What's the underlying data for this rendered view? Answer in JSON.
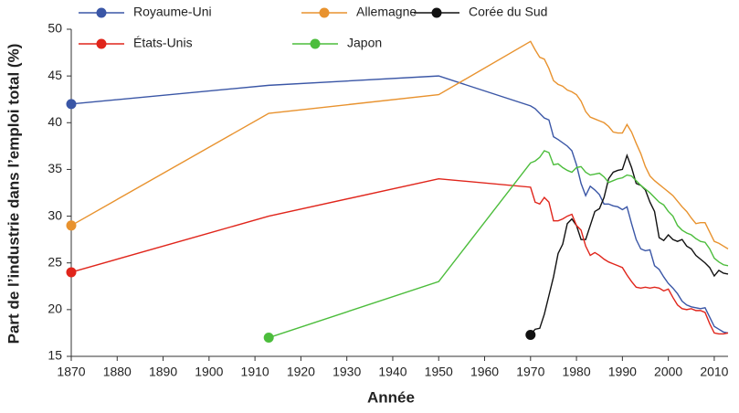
{
  "chart_data": {
    "type": "line",
    "y_label": "Part de l’industrie dans l’emploi total (%)",
    "x_label": "Année",
    "xlim": [
      1870,
      2013
    ],
    "xticks": [
      1870,
      1880,
      1890,
      1900,
      1910,
      1920,
      1930,
      1940,
      1950,
      1960,
      1970,
      1980,
      1990,
      2000,
      2010
    ],
    "ylim": [
      15,
      50
    ],
    "yticks": [
      15,
      20,
      25,
      30,
      35,
      40,
      45,
      50
    ],
    "series": [
      {
        "name": "Royaume-Uni",
        "color": "#3a56a6",
        "x": [
          1870,
          1913,
          1950,
          1970,
          1971,
          1973,
          1974,
          1975,
          1976,
          1978,
          1979,
          1980,
          1981,
          1982,
          1983,
          1984,
          1985,
          1986,
          1987,
          1988,
          1989,
          1990,
          1991,
          1992,
          1993,
          1994,
          1995,
          1996,
          1997,
          1998,
          1999,
          2000,
          2001,
          2002,
          2003,
          2004,
          2005,
          2006,
          2007,
          2008,
          2009,
          2010,
          2011,
          2012,
          2013
        ],
        "values": [
          42,
          44,
          45,
          41.8,
          41.5,
          40.5,
          40.3,
          38.5,
          38.2,
          37.5,
          37,
          35.5,
          33.5,
          32.2,
          33.2,
          32.8,
          32.3,
          31.3,
          31.3,
          31.1,
          31,
          30.7,
          31,
          29.2,
          27.5,
          26.5,
          26.3,
          26.4,
          24.7,
          24.3,
          23.5,
          22.8,
          22.3,
          21.7,
          20.9,
          20.5,
          20.3,
          20.2,
          20.1,
          20.2,
          19.2,
          18.2,
          17.9,
          17.6,
          17.5
        ]
      },
      {
        "name": "Allemagne",
        "color": "#e8922e",
        "x": [
          1870,
          1913,
          1950,
          1970,
          1971,
          1972,
          1973,
          1974,
          1975,
          1976,
          1977,
          1978,
          1979,
          1980,
          1981,
          1982,
          1983,
          1984,
          1985,
          1986,
          1987,
          1988,
          1989,
          1990,
          1991,
          1992,
          1993,
          1994,
          1995,
          1996,
          1997,
          1998,
          1999,
          2000,
          2001,
          2002,
          2003,
          2004,
          2005,
          2006,
          2007,
          2008,
          2009,
          2010,
          2011,
          2012,
          2013
        ],
        "values": [
          29,
          41,
          43,
          48.7,
          47.8,
          47,
          46.8,
          45.8,
          44.5,
          44.1,
          43.9,
          43.5,
          43.3,
          43,
          42.3,
          41.2,
          40.6,
          40.4,
          40.2,
          40,
          39.6,
          39,
          38.9,
          38.9,
          39.8,
          39,
          37.8,
          36.7,
          35.3,
          34.3,
          33.8,
          33.4,
          33,
          32.6,
          32.2,
          31.6,
          31,
          30.5,
          29.8,
          29.2,
          29.3,
          29.3,
          28.3,
          27.3,
          27.1,
          26.8,
          26.5
        ]
      },
      {
        "name": "Corée du Sud",
        "color": "#111111",
        "x": [
          1970,
          1971,
          1972,
          1973,
          1974,
          1975,
          1976,
          1977,
          1978,
          1979,
          1980,
          1981,
          1982,
          1983,
          1984,
          1985,
          1986,
          1987,
          1988,
          1989,
          1990,
          1991,
          1992,
          1993,
          1994,
          1995,
          1996,
          1997,
          1998,
          1999,
          2000,
          2001,
          2002,
          2003,
          2004,
          2005,
          2006,
          2007,
          2008,
          2009,
          2010,
          2011,
          2012,
          2013
        ],
        "values": [
          17.3,
          17.9,
          18,
          19.5,
          21.5,
          23.5,
          26,
          27,
          29.2,
          29.7,
          29,
          27.5,
          27.5,
          29,
          30.5,
          30.8,
          32,
          34,
          34.7,
          34.9,
          35,
          36.5,
          35.2,
          33.5,
          33.3,
          32.8,
          31.5,
          30.5,
          27.7,
          27.4,
          28,
          27.5,
          27.3,
          27.5,
          26.8,
          26.5,
          25.8,
          25.4,
          25,
          24.5,
          23.6,
          24.2,
          23.9,
          23.8
        ]
      },
      {
        "name": "États-Unis",
        "color": "#e0251b",
        "x": [
          1870,
          1913,
          1950,
          1970,
          1971,
          1972,
          1973,
          1974,
          1975,
          1976,
          1977,
          1978,
          1979,
          1980,
          1981,
          1982,
          1983,
          1984,
          1985,
          1986,
          1987,
          1988,
          1989,
          1990,
          1991,
          1992,
          1993,
          1994,
          1995,
          1996,
          1997,
          1998,
          1999,
          2000,
          2001,
          2002,
          2003,
          2004,
          2005,
          2006,
          2007,
          2008,
          2009,
          2010,
          2011,
          2012,
          2013
        ],
        "values": [
          24,
          30,
          34,
          33.1,
          31.5,
          31.3,
          32,
          31.5,
          29.5,
          29.5,
          29.7,
          30,
          30.2,
          29,
          28.5,
          26.8,
          25.8,
          26.1,
          25.8,
          25.4,
          25.1,
          24.9,
          24.7,
          24.5,
          23.7,
          23,
          22.4,
          22.3,
          22.4,
          22.3,
          22.4,
          22.3,
          22,
          22.2,
          21.3,
          20.5,
          20.1,
          20,
          20.1,
          19.9,
          19.9,
          19.7,
          18.5,
          17.5,
          17.4,
          17.4,
          17.5
        ]
      },
      {
        "name": "Japon",
        "color": "#4cbd3c",
        "x": [
          1913,
          1950,
          1970,
          1971,
          1972,
          1973,
          1974,
          1975,
          1976,
          1977,
          1978,
          1979,
          1980,
          1981,
          1982,
          1983,
          1984,
          1985,
          1986,
          1987,
          1988,
          1989,
          1990,
          1991,
          1992,
          1993,
          1994,
          1995,
          1996,
          1997,
          1998,
          1999,
          2000,
          2001,
          2002,
          2003,
          2004,
          2005,
          2006,
          2007,
          2008,
          2009,
          2010,
          2011,
          2012,
          2013
        ],
        "values": [
          17,
          23,
          35.7,
          35.9,
          36.3,
          37,
          36.8,
          35.5,
          35.6,
          35.2,
          34.9,
          34.7,
          35.2,
          35.3,
          34.7,
          34.4,
          34.5,
          34.6,
          34.2,
          33.6,
          33.8,
          34,
          34.1,
          34.4,
          34.3,
          33.8,
          33.3,
          32.9,
          32.5,
          32,
          31.5,
          31.2,
          30.5,
          30,
          29,
          28.5,
          28.2,
          28,
          27.6,
          27.3,
          27.2,
          26.5,
          25.5,
          25.1,
          24.8,
          24.7
        ]
      }
    ]
  }
}
